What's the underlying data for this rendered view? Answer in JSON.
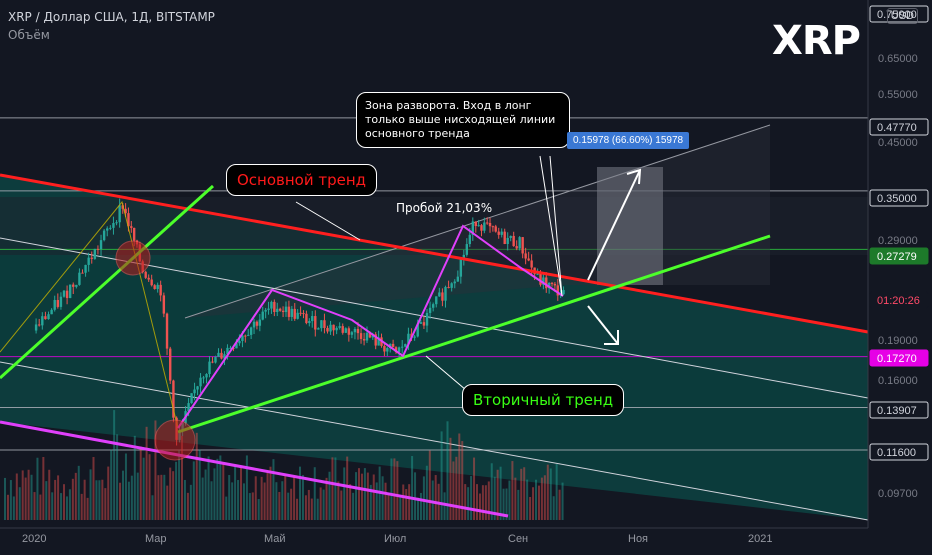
{
  "header": {
    "title": "XRP / Доллар США, 1Д, BITSTAMP",
    "volume_label": "Объём",
    "symbol_badge": "XRP",
    "currency": "USD"
  },
  "annotations": {
    "main_trend": "Основной тренд",
    "secondary_trend": "Вторичный тренд",
    "breakout": "Пробой 21,03%",
    "reversal_note": "Зона разворота. Вход в лонг только выше нисходящей линии основного тренда",
    "measure": "0.15978 (66.60%) 15978"
  },
  "price_axis": {
    "ticks": [
      "0.65000",
      "0.55000",
      "0.45000",
      "0.29000",
      "0.19000",
      "0.16000",
      "0.11600",
      "0.09700"
    ],
    "tags": [
      {
        "label": "0.75000",
        "color": "#131722",
        "text": "#d1d4dc",
        "border": "#d1d4dc"
      },
      {
        "label": "0.47770",
        "color": "#131722",
        "text": "#d1d4dc",
        "border": "#d1d4dc"
      },
      {
        "label": "0.35000",
        "color": "#131722",
        "text": "#d1d4dc",
        "border": "#d1d4dc"
      },
      {
        "label": "0.27279",
        "color": "#1d7a2a",
        "text": "#ffffff",
        "border": "#1d7a2a"
      },
      {
        "label": "01:20:26",
        "color": "#131722",
        "text": "#ff4a68",
        "border": "#131722"
      },
      {
        "label": "0.17270",
        "color": "#e600e6",
        "text": "#ffffff",
        "border": "#e600e6"
      },
      {
        "label": "0.13907",
        "color": "#131722",
        "text": "#d1d4dc",
        "border": "#d1d4dc"
      },
      {
        "label": "0.11600",
        "color": "#131722",
        "text": "#d1d4dc",
        "border": "#d1d4dc"
      }
    ]
  },
  "time_axis": {
    "ticks": [
      "2020",
      "Мар",
      "Май",
      "Июл",
      "Сен",
      "Ноя",
      "2021"
    ]
  },
  "colors": {
    "background": "#131722",
    "main_trend": "#ff1f1f",
    "secondary_trend": "#4cff2a",
    "zigzag": "#e040fb",
    "channel_fill": "#0c4a47",
    "up_candle": "#26a69a",
    "down_candle": "#ef5350"
  },
  "chart_data": {
    "type": "candlestick",
    "title": "XRP / Доллар США, 1Д, BITSTAMP",
    "y_scale": "log",
    "ylim": [
      0.085,
      0.8
    ],
    "x_ticks": [
      "2020",
      "Мар",
      "Май",
      "Июл",
      "Сен",
      "Ноя",
      "2021"
    ],
    "series": [
      {
        "name": "XRP",
        "close_path": [
          [
            "2020-01-01",
            0.193
          ],
          [
            "2020-01-15",
            0.22
          ],
          [
            "2020-02-01",
            0.27
          ],
          [
            "2020-02-15",
            0.33
          ],
          [
            "2020-02-25",
            0.25
          ],
          [
            "2020-03-05",
            0.23
          ],
          [
            "2020-03-13",
            0.12
          ],
          [
            "2020-03-25",
            0.16
          ],
          [
            "2020-04-15",
            0.19
          ],
          [
            "2020-05-01",
            0.215
          ],
          [
            "2020-05-20",
            0.2
          ],
          [
            "2020-06-15",
            0.19
          ],
          [
            "2020-07-01",
            0.175
          ],
          [
            "2020-07-15",
            0.2
          ],
          [
            "2020-08-01",
            0.25
          ],
          [
            "2020-08-10",
            0.31
          ],
          [
            "2020-08-20",
            0.29
          ],
          [
            "2020-09-01",
            0.28
          ],
          [
            "2020-09-10",
            0.24
          ],
          [
            "2020-09-23",
            0.225
          ]
        ]
      }
    ],
    "horizontal_levels": [
      0.4777,
      0.35,
      0.27279,
      0.1727,
      0.13907,
      0.116
    ],
    "trendlines": [
      {
        "name": "Основной тренд",
        "color": "#ff1f1f"
      },
      {
        "name": "Вторичный тренд",
        "color": "#4cff2a"
      }
    ]
  }
}
